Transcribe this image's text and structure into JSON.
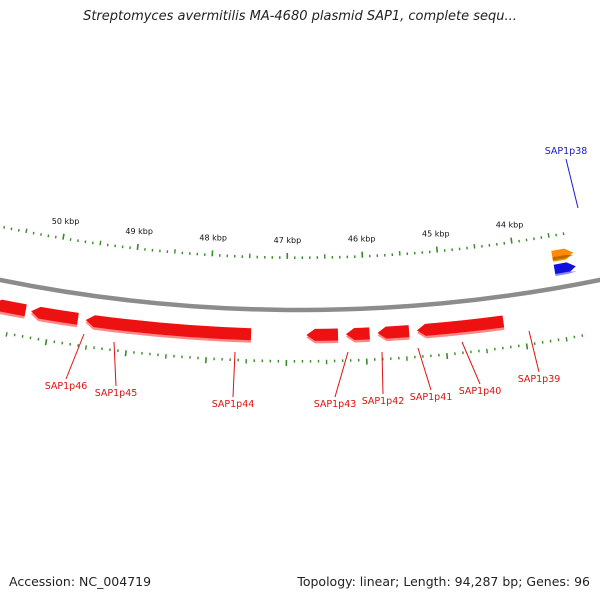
{
  "title": "Streptomyces avermitilis MA-4680 plasmid SAP1, complete sequ...",
  "footer": {
    "accession": "Accession: NC_004719",
    "summary": "Topology: linear; Length: 94,287 bp; Genes: 96"
  },
  "colors": {
    "backbone": "#8c8c8c",
    "tick": "#3a8a2a",
    "reverse_gene": "#ee1111",
    "forward_gene_blue": "#1111dd",
    "forward_gene_orange": "#ff8c00",
    "label_blue": "#1a1acc",
    "label_red": "#dd1111"
  },
  "scale": {
    "unit": "kbp",
    "labels": [
      "44 kbp",
      "45 kbp",
      "46 kbp",
      "47 kbp",
      "48 kbp",
      "49 kbp",
      "50 kbp"
    ],
    "positions_kbp": [
      44,
      45,
      46,
      47,
      48,
      49,
      50
    ]
  },
  "genes": [
    {
      "name": "SAP1p38",
      "strand": "forward",
      "color": "blue"
    },
    {
      "name": "SAP1p39",
      "strand": "reverse",
      "color": "red"
    },
    {
      "name": "SAP1p40",
      "strand": "reverse",
      "color": "red"
    },
    {
      "name": "SAP1p41",
      "strand": "reverse",
      "color": "red"
    },
    {
      "name": "SAP1p42",
      "strand": "reverse",
      "color": "red"
    },
    {
      "name": "SAP1p43",
      "strand": "reverse",
      "color": "red"
    },
    {
      "name": "SAP1p44",
      "strand": "reverse",
      "color": "red"
    },
    {
      "name": "SAP1p45",
      "strand": "reverse",
      "color": "red"
    },
    {
      "name": "SAP1p46",
      "strand": "reverse",
      "color": "red"
    }
  ]
}
